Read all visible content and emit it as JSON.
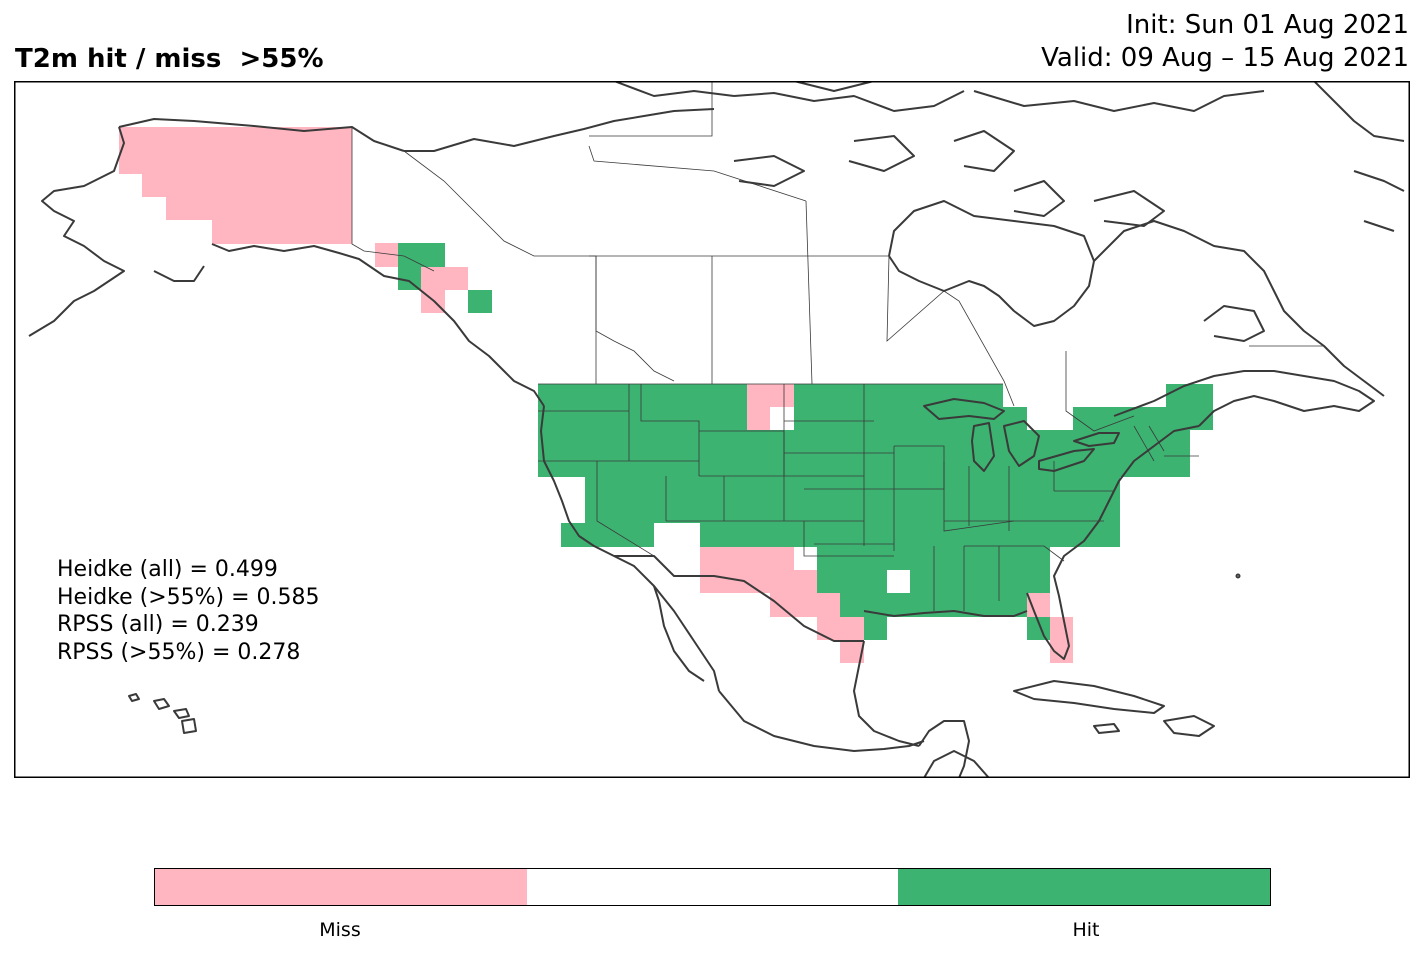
{
  "header": {
    "title": "T2m hit / miss  >55%",
    "init": "Init: Sun 01 Aug 2021",
    "valid": "Valid: 09 Aug – 15 Aug 2021"
  },
  "stats": [
    "Heidke (all) = 0.499",
    "Heidke (>55%) = 0.585",
    "RPSS (all) = 0.239",
    "RPSS (>55%) = 0.278"
  ],
  "legend": {
    "segments": [
      {
        "label": "Miss",
        "color": "#ffb6c1"
      },
      {
        "label": "",
        "color": "#ffffff"
      },
      {
        "label": "Hit",
        "color": "#3cb371"
      }
    ]
  },
  "colors": {
    "hit": "#3cb371",
    "miss": "#ffb6c1",
    "coastline": "#3a3a3a"
  },
  "map": {
    "region": "North America",
    "miss_areas": [
      "Alaska",
      "Southeast Alaska panhandle (part)",
      "Eastern Montana",
      "New Mexico",
      "Western Texas",
      "South Texas",
      "Central Florida"
    ],
    "hit_areas": [
      "Southeast Alaska panhandle (part)",
      "Contiguous United States (most)",
      "Southern Ontario",
      "Southern Quebec"
    ]
  }
}
